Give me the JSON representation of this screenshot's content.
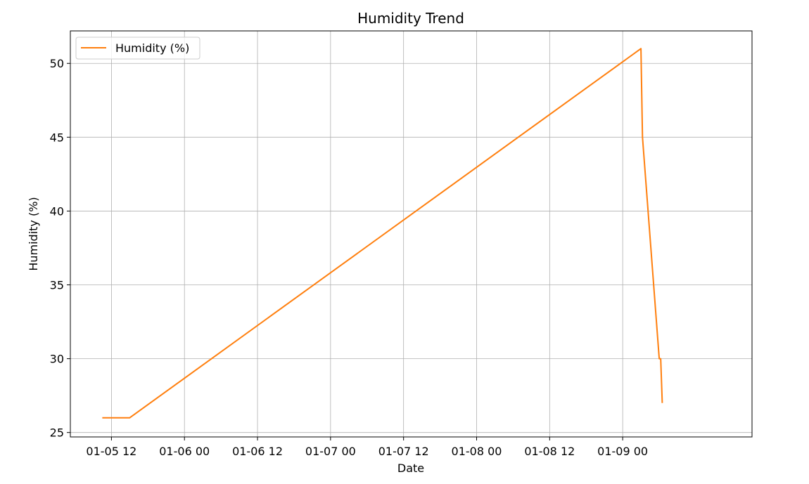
{
  "chart_data": {
    "type": "line",
    "title": "Humidity Trend",
    "xlabel": "Date",
    "ylabel": "Humidity (%)",
    "xlim": [
      "2024-01-05 05:15",
      "2024-01-09 21:15"
    ],
    "ylim": [
      24.7,
      52.2
    ],
    "x_tick_labels": [
      "01-05 12",
      "01-06 00",
      "01-06 12",
      "01-07 00",
      "01-07 12",
      "01-08 00",
      "01-08 12",
      "01-09 00"
    ],
    "y_ticks": [
      25,
      30,
      35,
      40,
      45,
      50
    ],
    "grid": true,
    "legend_position": "upper-left",
    "series": [
      {
        "name": "Humidity (%)",
        "color": "#ff7f0e",
        "x": [
          "2024-01-05 10:30",
          "2024-01-05 15:00",
          "2024-01-09 03:00",
          "2024-01-09 03:15",
          "2024-01-09 06:00",
          "2024-01-09 06:15",
          "2024-01-09 06:30"
        ],
        "values": [
          26,
          26,
          51,
          45,
          30,
          30,
          27
        ]
      }
    ]
  }
}
